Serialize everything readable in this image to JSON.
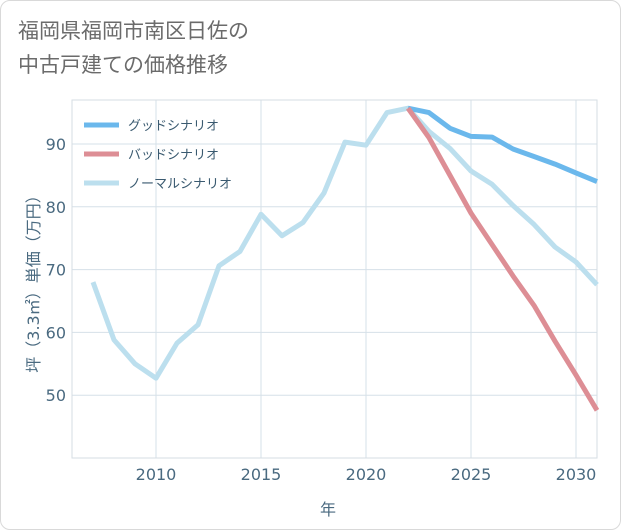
{
  "title_lines": [
    "福岡県福岡市南区日佐の",
    "中古戸建ての価格推移"
  ],
  "chart_data": {
    "type": "line",
    "xlabel": "年",
    "ylabel": "坪（3.3㎡）単価（万円）",
    "xlim": [
      2006,
      2031
    ],
    "ylim": [
      40,
      97
    ],
    "xticks": [
      2010,
      2015,
      2020,
      2025,
      2030
    ],
    "yticks": [
      50,
      60,
      70,
      80,
      90
    ],
    "grid": true,
    "legend_position": "top-left",
    "series": [
      {
        "name": "グッドシナリオ",
        "color": "#6bb8ec",
        "x": [
          2022,
          2023,
          2024,
          2025,
          2026,
          2027,
          2028,
          2029,
          2030,
          2031
        ],
        "values": [
          95.7,
          95.0,
          92.5,
          91.2,
          91.1,
          89.2,
          88.0,
          86.8,
          85.4,
          84.0
        ]
      },
      {
        "name": "バッドシナリオ",
        "color": "#dd8e95",
        "x": [
          2022,
          2023,
          2024,
          2025,
          2026,
          2027,
          2028,
          2029,
          2030,
          2031
        ],
        "values": [
          95.7,
          91.0,
          85.0,
          79.0,
          74.0,
          69.0,
          64.3,
          58.6,
          53.2,
          47.6
        ]
      },
      {
        "name": "ノーマルシナリオ",
        "color": "#bcdfee",
        "x": [
          2007,
          2008,
          2009,
          2010,
          2011,
          2012,
          2013,
          2014,
          2015,
          2016,
          2017,
          2018,
          2019,
          2020,
          2021,
          2022,
          2023,
          2024,
          2025,
          2026,
          2027,
          2028,
          2029,
          2030,
          2031
        ],
        "values": [
          68.0,
          58.8,
          55.0,
          52.7,
          58.3,
          61.2,
          70.6,
          72.9,
          78.8,
          75.4,
          77.5,
          82.2,
          90.3,
          89.8,
          95.0,
          95.7,
          92.0,
          89.3,
          85.7,
          83.6,
          80.2,
          77.2,
          73.6,
          71.2,
          67.6
        ]
      }
    ]
  }
}
